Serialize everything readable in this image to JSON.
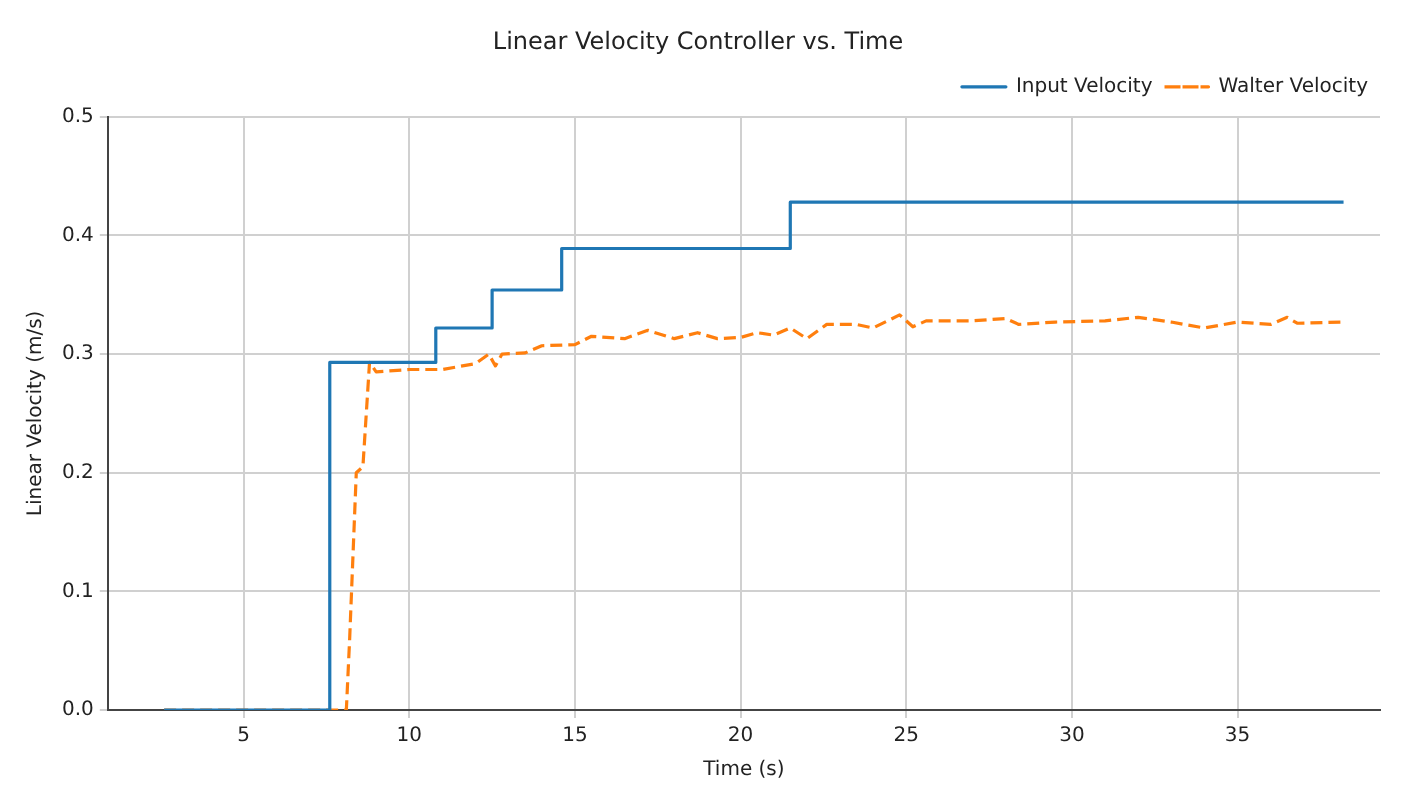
{
  "chart_data": {
    "type": "line",
    "title": "Linear Velocity Controller vs. Time",
    "xlabel": "Time (s)",
    "ylabel": "Linear Velocity (m/s)",
    "xlim": [
      0.9,
      39.3
    ],
    "xticks": [
      5,
      10,
      15,
      20,
      25,
      30,
      35
    ],
    "ylim": [
      0,
      0.5
    ],
    "yticks": [
      {
        "value": 0,
        "label": "0.0"
      },
      0.1,
      0.2,
      0.3,
      0.4,
      0.5
    ],
    "grid": true,
    "legend": "top right",
    "series": [
      {
        "name": "Input Velocity",
        "color": "#1f77b4",
        "line_style": "solid",
        "x": [
          2.6,
          7.6,
          7.6,
          10.8,
          10.8,
          12.5,
          12.5,
          14.6,
          14.6,
          21.5,
          21.5,
          38.2
        ],
        "values": [
          0,
          0,
          0.293,
          0.293,
          0.322,
          0.322,
          0.354,
          0.354,
          0.389,
          0.389,
          0.428,
          0.428
        ]
      },
      {
        "name": "Walter Velocity",
        "color": "#ff7f0e",
        "line_style": "dashed",
        "x": [
          2.6,
          8.1,
          8.2,
          8.4,
          8.6,
          8.8,
          9.0,
          10,
          11,
          12,
          12.4,
          12.6,
          12.8,
          13.5,
          14,
          15,
          15.5,
          16.5,
          17.2,
          18,
          18.7,
          19.3,
          20,
          20.5,
          21,
          21.5,
          22,
          22.6,
          23.5,
          24,
          24.8,
          25.2,
          25.6,
          27,
          28,
          28.4,
          29.5,
          31,
          32,
          33,
          34,
          35,
          36,
          36.5,
          36.8,
          38.2
        ],
        "values": [
          0,
          0,
          0.06,
          0.2,
          0.205,
          0.293,
          0.285,
          0.287,
          0.287,
          0.292,
          0.3,
          0.29,
          0.3,
          0.301,
          0.307,
          0.308,
          0.315,
          0.313,
          0.32,
          0.313,
          0.318,
          0.313,
          0.314,
          0.318,
          0.316,
          0.322,
          0.313,
          0.325,
          0.325,
          0.322,
          0.333,
          0.323,
          0.328,
          0.328,
          0.33,
          0.325,
          0.327,
          0.328,
          0.331,
          0.327,
          0.322,
          0.327,
          0.325,
          0.331,
          0.326,
          0.327
        ]
      }
    ]
  }
}
